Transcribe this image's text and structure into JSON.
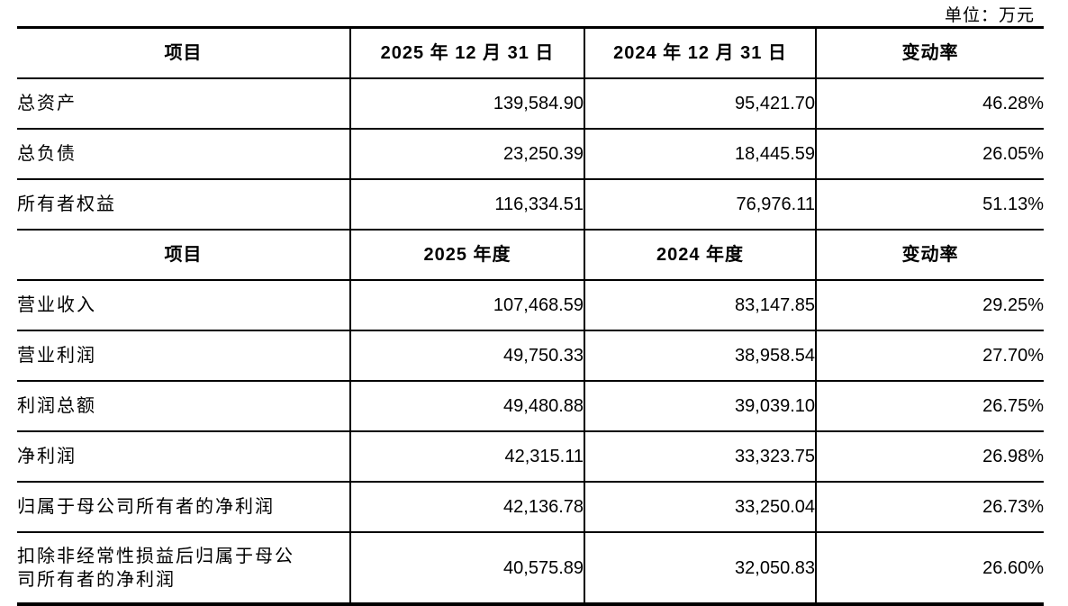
{
  "page": {
    "unit_label": "单位：万元"
  },
  "table": {
    "sections": [
      {
        "header": {
          "item": "项目",
          "col_current": "2025 年 12 月 31 日",
          "col_prior": "2024 年 12 月 31 日",
          "rate": "变动率"
        },
        "rows": [
          {
            "item": "总资产",
            "current": "139,584.90",
            "prior": "95,421.70",
            "rate": "46.28%"
          },
          {
            "item": "总负债",
            "current": "23,250.39",
            "prior": "18,445.59",
            "rate": "26.05%"
          },
          {
            "item": "所有者权益",
            "current": "116,334.51",
            "prior": "76,976.11",
            "rate": "51.13%"
          }
        ]
      },
      {
        "header": {
          "item": "项目",
          "col_current": "2025 年度",
          "col_prior": "2024 年度",
          "rate": "变动率"
        },
        "rows": [
          {
            "item": "营业收入",
            "current": "107,468.59",
            "prior": "83,147.85",
            "rate": "29.25%"
          },
          {
            "item": "营业利润",
            "current": "49,750.33",
            "prior": "38,958.54",
            "rate": "27.70%"
          },
          {
            "item": "利润总额",
            "current": "49,480.88",
            "prior": "39,039.10",
            "rate": "26.75%"
          },
          {
            "item": "净利润",
            "current": "42,315.11",
            "prior": "33,323.75",
            "rate": "26.98%"
          },
          {
            "item": "归属于母公司所有者的净利润",
            "current": "42,136.78",
            "prior": "33,250.04",
            "rate": "26.73%"
          },
          {
            "item": "扣除非经常性损益后归属于母公\n司所有者的净利润",
            "current": "40,575.89",
            "prior": "32,050.83",
            "rate": "26.60%"
          }
        ]
      }
    ]
  }
}
